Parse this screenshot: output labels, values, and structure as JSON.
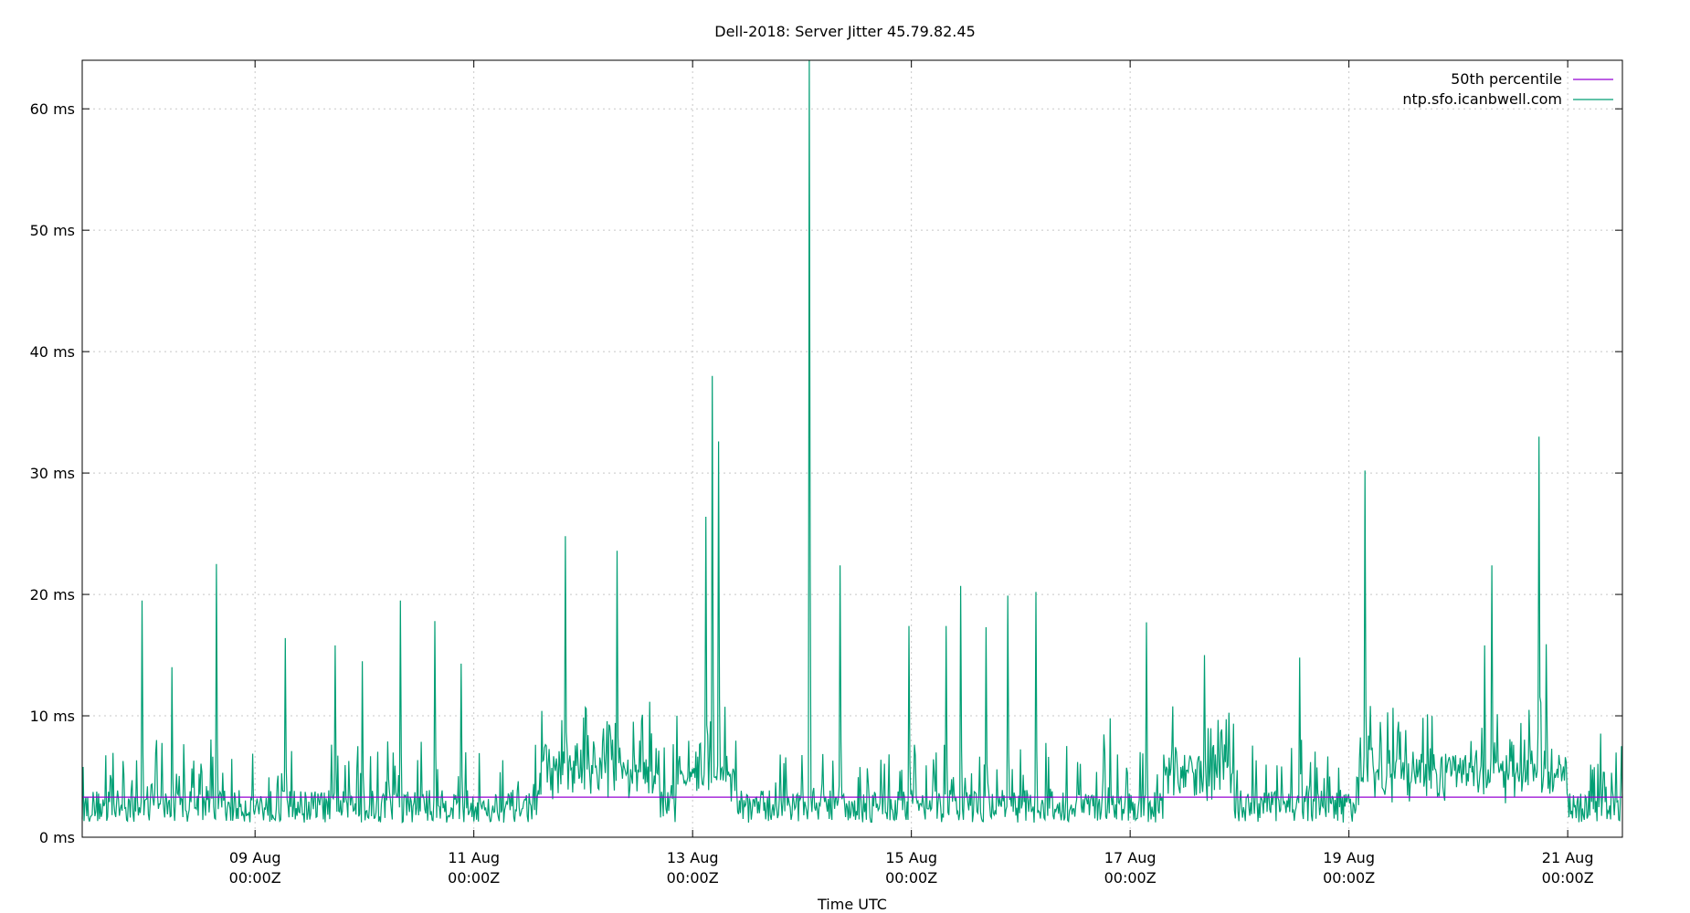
{
  "chart_data": {
    "type": "line",
    "title": "Dell-2018: Server Jitter 45.79.82.45",
    "xlabel": "Time UTC",
    "ylabel": "",
    "x_range_days": [
      7.42,
      21.5
    ],
    "ylim": [
      0,
      64
    ],
    "x_ticks": [
      {
        "day": 9,
        "label_line1": "09 Aug",
        "label_line2": "00:00Z"
      },
      {
        "day": 11,
        "label_line1": "11 Aug",
        "label_line2": "00:00Z"
      },
      {
        "day": 13,
        "label_line1": "13 Aug",
        "label_line2": "00:00Z"
      },
      {
        "day": 15,
        "label_line1": "15 Aug",
        "label_line2": "00:00Z"
      },
      {
        "day": 17,
        "label_line1": "17 Aug",
        "label_line2": "00:00Z"
      },
      {
        "day": 19,
        "label_line1": "19 Aug",
        "label_line2": "00:00Z"
      },
      {
        "day": 21,
        "label_line1": "21 Aug",
        "label_line2": "00:00Z"
      }
    ],
    "y_ticks": [
      {
        "value": 0,
        "label": "0 ms"
      },
      {
        "value": 10,
        "label": "10 ms"
      },
      {
        "value": 20,
        "label": "20 ms"
      },
      {
        "value": 30,
        "label": "30 ms"
      },
      {
        "value": 40,
        "label": "40 ms"
      },
      {
        "value": 50,
        "label": "50 ms"
      },
      {
        "value": 60,
        "label": "60 ms"
      }
    ],
    "grid": true,
    "legend_position": "top-right",
    "series": [
      {
        "name": "50th percentile",
        "color": "#9400d3",
        "kind": "constant",
        "value": 3.3
      },
      {
        "name": "ntp.sfo.icanbwell.com",
        "color": "#009e73",
        "kind": "noisy",
        "baseline_ms": 3.0,
        "spikes": [
          {
            "day": 7.97,
            "ms": 19.5
          },
          {
            "day": 8.24,
            "ms": 14.0
          },
          {
            "day": 8.65,
            "ms": 22.5
          },
          {
            "day": 9.28,
            "ms": 16.4
          },
          {
            "day": 9.73,
            "ms": 15.8
          },
          {
            "day": 9.98,
            "ms": 14.5
          },
          {
            "day": 10.33,
            "ms": 19.5
          },
          {
            "day": 10.64,
            "ms": 17.8
          },
          {
            "day": 10.88,
            "ms": 14.3
          },
          {
            "day": 11.84,
            "ms": 24.8
          },
          {
            "day": 12.31,
            "ms": 23.6
          },
          {
            "day": 13.12,
            "ms": 26.4
          },
          {
            "day": 13.18,
            "ms": 38.0
          },
          {
            "day": 13.24,
            "ms": 32.6
          },
          {
            "day": 14.07,
            "ms": 64.0
          },
          {
            "day": 14.35,
            "ms": 22.4
          },
          {
            "day": 14.98,
            "ms": 17.4
          },
          {
            "day": 15.32,
            "ms": 17.4
          },
          {
            "day": 15.45,
            "ms": 20.7
          },
          {
            "day": 15.68,
            "ms": 17.3
          },
          {
            "day": 15.88,
            "ms": 19.9
          },
          {
            "day": 16.14,
            "ms": 20.2
          },
          {
            "day": 16.82,
            "ms": 9.8
          },
          {
            "day": 17.15,
            "ms": 17.7
          },
          {
            "day": 17.68,
            "ms": 15.0
          },
          {
            "day": 18.55,
            "ms": 14.8
          },
          {
            "day": 19.15,
            "ms": 30.2
          },
          {
            "day": 20.24,
            "ms": 15.8
          },
          {
            "day": 20.31,
            "ms": 22.4
          },
          {
            "day": 20.74,
            "ms": 33.0
          },
          {
            "day": 20.8,
            "ms": 15.9
          }
        ]
      }
    ]
  }
}
